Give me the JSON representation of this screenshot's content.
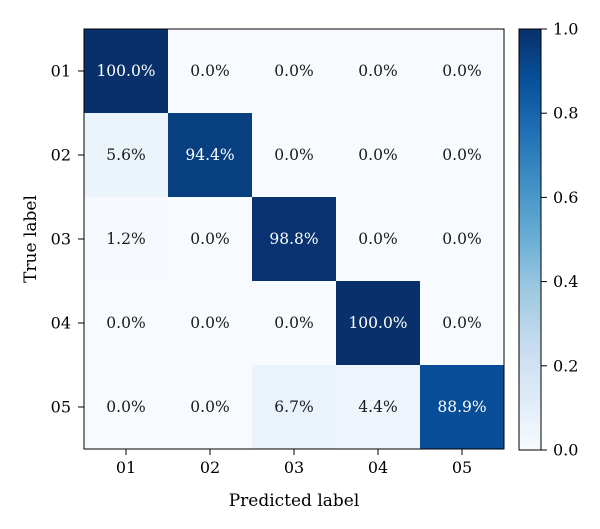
{
  "chart_data": {
    "type": "heatmap",
    "title": "",
    "xlabel": "Predicted label",
    "ylabel": "True label",
    "x_categories": [
      "01",
      "02",
      "03",
      "04",
      "05"
    ],
    "y_categories": [
      "01",
      "02",
      "03",
      "04",
      "05"
    ],
    "values": [
      [
        1.0,
        0.0,
        0.0,
        0.0,
        0.0
      ],
      [
        0.056,
        0.944,
        0.0,
        0.0,
        0.0
      ],
      [
        0.012,
        0.0,
        0.988,
        0.0,
        0.0
      ],
      [
        0.0,
        0.0,
        0.0,
        1.0,
        0.0
      ],
      [
        0.0,
        0.0,
        0.067,
        0.044,
        0.889
      ]
    ],
    "cell_labels": [
      [
        "100.0%",
        "0.0%",
        "0.0%",
        "0.0%",
        "0.0%"
      ],
      [
        "5.6%",
        "94.4%",
        "0.0%",
        "0.0%",
        "0.0%"
      ],
      [
        "1.2%",
        "0.0%",
        "98.8%",
        "0.0%",
        "0.0%"
      ],
      [
        "0.0%",
        "0.0%",
        "0.0%",
        "100.0%",
        "0.0%"
      ],
      [
        "0.0%",
        "0.0%",
        "6.7%",
        "4.4%",
        "88.9%"
      ]
    ],
    "colorbar": {
      "colormap": "Blues",
      "range": [
        0.0,
        1.0
      ],
      "ticks": [
        "0.0",
        "0.2",
        "0.4",
        "0.6",
        "0.8",
        "1.0"
      ]
    },
    "grid": false,
    "legend": "colorbar-right"
  }
}
